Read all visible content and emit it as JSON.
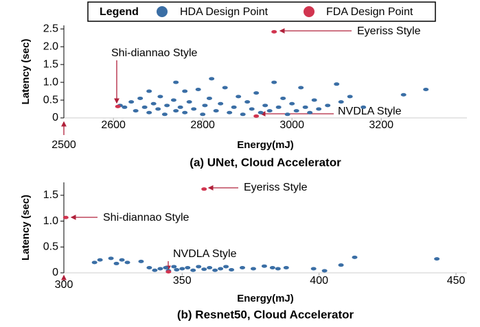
{
  "chart_data": [
    {
      "type": "scatter",
      "legend_title": "Legend",
      "title": "(a) UNet, Cloud Accelerator",
      "x_label": "Energy(mJ)",
      "y_label": "Latency (sec)",
      "origin_label": "2500",
      "annotations": [
        "Eyeriss Style",
        "Shi-diannao Style",
        "NVDLA Style"
      ],
      "xlim": [
        2489,
        3392
      ],
      "ylim": [
        0,
        2.6
      ],
      "xticks": [
        2600,
        2800,
        3000,
        3200
      ],
      "yticks": [
        0,
        0.5,
        {
          "value": 1.0,
          "label": "1.0"
        },
        {
          "value": 1.5,
          "label": "1.5"
        },
        {
          "value": 2.0,
          "label": "2.0"
        },
        {
          "value": 2.5,
          "label": "2.5"
        }
      ],
      "series": [
        {
          "name": "HDA Design Point",
          "color": "#3a6ea5",
          "x": [
            2615,
            2625,
            2640,
            2650,
            2660,
            2670,
            2680,
            2690,
            2700,
            2705,
            2715,
            2720,
            2735,
            2740,
            2750,
            2760,
            2770,
            2780,
            2790,
            2800,
            2805,
            2815,
            2820,
            2830,
            2840,
            2850,
            2860,
            2870,
            2880,
            2890,
            2900,
            2910,
            2920,
            2930,
            2940,
            2950,
            2960,
            2970,
            2980,
            2990,
            3000,
            3010,
            3020,
            3030,
            3040,
            3050,
            3060,
            3080,
            3100,
            3110,
            3130,
            3160,
            3250,
            3300,
            2760,
            2680,
            2740
          ],
          "y": [
            0.35,
            0.3,
            0.45,
            0.2,
            0.55,
            0.3,
            0.15,
            0.4,
            0.25,
            0.6,
            0.1,
            0.35,
            0.5,
            0.2,
            0.3,
            0.15,
            0.45,
            0.25,
            0.8,
            0.1,
            0.35,
            0.55,
            1.1,
            0.2,
            0.4,
            0.85,
            0.15,
            0.3,
            0.6,
            0.1,
            0.45,
            0.25,
            0.7,
            0.15,
            0.35,
            0.2,
            1.0,
            0.3,
            0.55,
            0.1,
            0.4,
            0.2,
            0.85,
            0.3,
            0.15,
            0.5,
            0.25,
            0.35,
            0.95,
            0.45,
            0.6,
            0.3,
            0.65,
            0.8,
            0.75,
            0.75,
            1.0
          ]
        },
        {
          "name": "FDA Design Point",
          "color": "#d1344f",
          "x": [
            2960,
            2610,
            2920
          ],
          "y": [
            2.42,
            0.32,
            0.05
          ]
        }
      ]
    },
    {
      "type": "scatter",
      "title": "(b) Resnet50, Cloud Accelerator",
      "x_label": "Energy(mJ)",
      "y_label": "Latency (sec)",
      "origin_label": "300",
      "annotations": [
        "Eyeriss Style",
        "Shi-diannao Style",
        "NVDLA Style"
      ],
      "xlim": [
        306.8,
        454
      ],
      "ylim": [
        0,
        1.75
      ],
      "xticks": [
        350,
        400,
        450
      ],
      "yticks": [
        0,
        0.5,
        {
          "value": 1.0,
          "label": "1.0"
        },
        {
          "value": 1.5,
          "label": "1.5"
        }
      ],
      "series": [
        {
          "name": "HDA Design Point",
          "color": "#3a6ea5",
          "x": [
            318,
            320,
            324,
            326,
            328,
            330,
            335,
            338,
            340,
            342,
            344,
            345,
            347,
            348,
            350,
            352,
            354,
            356,
            358,
            360,
            362,
            364,
            366,
            368,
            372,
            376,
            380,
            383,
            385,
            388,
            398,
            402,
            408,
            413,
            443
          ],
          "y": [
            0.2,
            0.25,
            0.28,
            0.18,
            0.25,
            0.2,
            0.22,
            0.1,
            0.05,
            0.08,
            0.1,
            0.04,
            0.12,
            0.06,
            0.08,
            0.1,
            0.05,
            0.12,
            0.07,
            0.1,
            0.05,
            0.08,
            0.12,
            0.06,
            0.1,
            0.08,
            0.13,
            0.1,
            0.08,
            0.1,
            0.08,
            0.04,
            0.15,
            0.3,
            0.27
          ]
        },
        {
          "name": "FDA Design Point",
          "color": "#d1344f",
          "x": [
            358,
            307.5,
            345
          ],
          "y": [
            1.62,
            1.07,
            0.02
          ]
        }
      ]
    }
  ]
}
